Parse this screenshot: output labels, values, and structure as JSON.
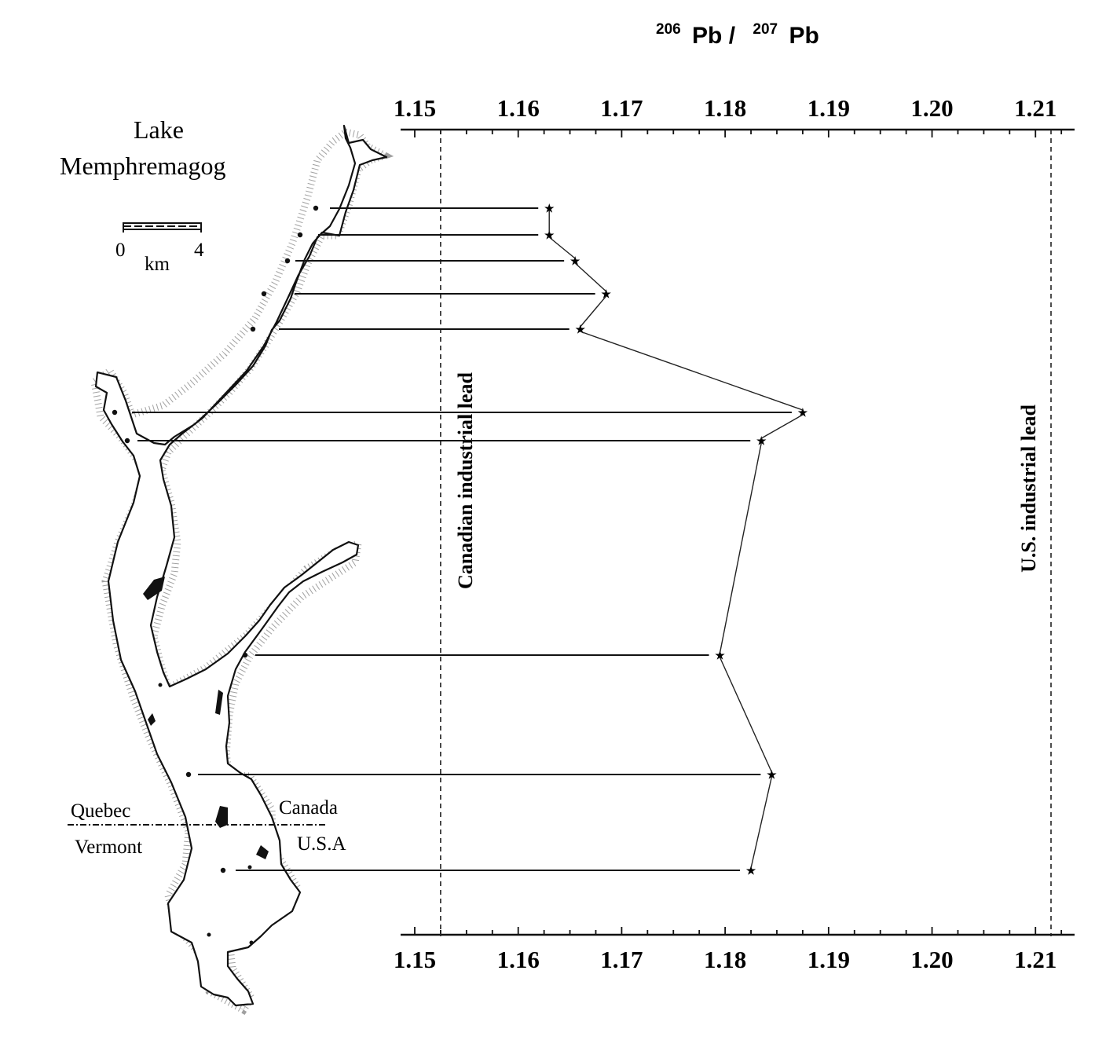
{
  "chart_data": {
    "type": "line",
    "title": "206 Pb / 207 Pb",
    "axis_title": {
      "sup1": "206",
      "base1": "Pb /",
      "sup2": "207",
      "base2": "Pb"
    },
    "x_axis_label": "206 Pb / 207 Pb",
    "xlim": [
      1.15,
      1.214
    ],
    "x_ticks": [
      "1.15",
      "1.16",
      "1.17",
      "1.18",
      "1.19",
      "1.20",
      "1.21"
    ],
    "axis_positions": [
      "top",
      "bottom"
    ],
    "grid": false,
    "series": [
      {
        "points": [
          {
            "x": 1.163
          },
          {
            "x": 1.163
          },
          {
            "x": 1.1655
          },
          {
            "x": 1.1685
          },
          {
            "x": 1.166
          },
          {
            "x": 1.1875
          },
          {
            "x": 1.1835
          },
          {
            "x": 1.1795
          },
          {
            "x": 1.1845
          },
          {
            "x": 1.1825
          }
        ]
      }
    ],
    "reference_lines": [
      {
        "label": "Canadian industrial lead",
        "x": 1.1525
      },
      {
        "label": "U.S. industrial lead",
        "x": 1.2115
      }
    ]
  },
  "map": {
    "title_line1": "Lake",
    "title_line2": "Memphremagog",
    "scale_start": "0",
    "scale_end": "4",
    "scale_unit": "km",
    "labels": {
      "quebec": "Quebec",
      "vermont": "Vermont",
      "canada": "Canada",
      "usa": "U.S.A"
    }
  }
}
